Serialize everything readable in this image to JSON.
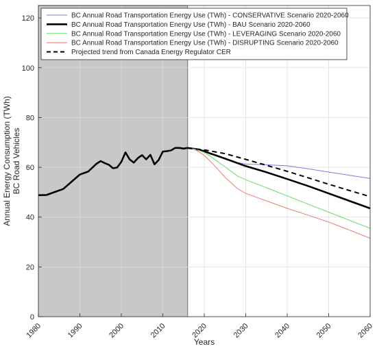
{
  "chart_data": {
    "type": "line",
    "xlabel": "Years",
    "ylabel_lines": [
      "Annual Energy Consumption (TWh)",
      "BC Road Vehicles"
    ],
    "xlim": [
      1980,
      2060
    ],
    "ylim": [
      0,
      125
    ],
    "x_ticks": [
      1980,
      1990,
      2000,
      2010,
      2020,
      2030,
      2040,
      2050,
      2060
    ],
    "y_ticks": [
      0,
      20,
      40,
      60,
      80,
      100,
      120
    ],
    "grid": true,
    "legend_position": "top-left",
    "shaded_region": {
      "x_from": 1980,
      "x_to": 2016,
      "color": "#c8c8c8"
    },
    "series": [
      {
        "name": "BC Annual Road Transportation Energy Use (TWh) - CONSERVATIVE Scenario 2020-2060",
        "color": "#7b7bdc",
        "style": "solid",
        "width": "thin",
        "x": [
          2016,
          2018,
          2020,
          2022,
          2025,
          2028,
          2030,
          2035,
          2040,
          2045,
          2050,
          2055,
          2060
        ],
        "values": [
          67.8,
          67.6,
          66.8,
          65.4,
          63.4,
          61.9,
          61.3,
          61.0,
          60.6,
          59.4,
          58.1,
          56.8,
          55.5
        ]
      },
      {
        "name": "BC Annual Road Transportation Energy Use (TWh) - BAU Scenario 2020-2060",
        "color": "#000000",
        "style": "solid",
        "width": "thick",
        "x": [
          1980,
          1982,
          1984,
          1986,
          1988,
          1990,
          1992,
          1994,
          1995,
          1996,
          1997,
          1998,
          1999,
          2000,
          2001,
          2002,
          2003,
          2004,
          2005,
          2006,
          2007,
          2008,
          2009,
          2010,
          2011,
          2012,
          2013,
          2014,
          2015,
          2016,
          2018,
          2020,
          2025,
          2030,
          2035,
          2040,
          2045,
          2050,
          2055,
          2060
        ],
        "values": [
          48.8,
          48.9,
          50.1,
          51.3,
          54.2,
          57.1,
          58.3,
          61.4,
          62.5,
          61.7,
          61.0,
          59.6,
          59.9,
          62.2,
          66.0,
          63.2,
          61.9,
          63.7,
          64.9,
          63.2,
          65.0,
          61.2,
          62.9,
          66.3,
          66.5,
          66.8,
          67.8,
          67.8,
          67.5,
          67.8,
          67.3,
          66.4,
          63.5,
          60.5,
          58.0,
          55.3,
          52.5,
          49.5,
          46.5,
          43.5
        ]
      },
      {
        "name": "BC Annual Road Transportation Energy Use (TWh) - LEVERAGING Scenario 2020-2060",
        "color": "#66dd66",
        "style": "solid",
        "width": "thin",
        "x": [
          2016,
          2018,
          2020,
          2022,
          2025,
          2028,
          2030,
          2035,
          2040,
          2045,
          2050,
          2055,
          2060
        ],
        "values": [
          67.8,
          67.2,
          66.0,
          63.8,
          60.2,
          56.5,
          55.0,
          51.8,
          48.5,
          45.2,
          42.0,
          38.7,
          35.5
        ]
      },
      {
        "name": "BC Annual Road Transportation Energy Use (TWh) - DISRUPTING Scenario 2020-2060",
        "color": "#ec7a7a",
        "style": "solid",
        "width": "thin",
        "x": [
          2016,
          2018,
          2020,
          2022,
          2025,
          2028,
          2030,
          2035,
          2040,
          2045,
          2050,
          2055,
          2060
        ],
        "values": [
          67.8,
          66.9,
          64.8,
          61.5,
          56.0,
          51.5,
          49.5,
          46.5,
          43.5,
          40.8,
          38.0,
          34.8,
          31.5
        ]
      },
      {
        "name": "Projected trend from Canada Energy Regulator CER",
        "color": "#000000",
        "style": "dashed",
        "width": "medium",
        "x": [
          2016,
          2020,
          2025,
          2030,
          2035,
          2040,
          2045,
          2050,
          2055,
          2060
        ],
        "values": [
          67.8,
          67.0,
          65.5,
          63.2,
          60.8,
          58.4,
          55.8,
          53.2,
          50.7,
          48.2
        ]
      }
    ]
  }
}
